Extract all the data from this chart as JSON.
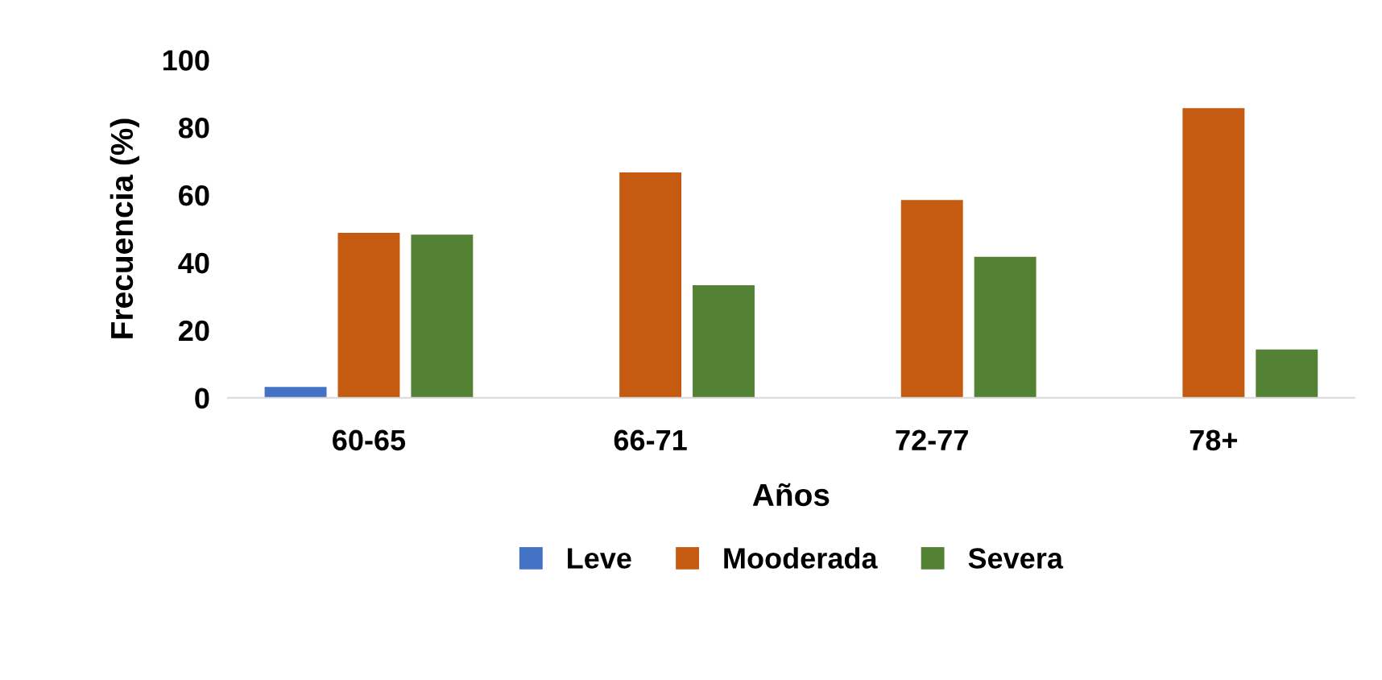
{
  "chart_data": {
    "type": "bar",
    "xlabel": "Años",
    "ylabel": "Frecuencia (%)",
    "categories": [
      "60-65",
      "66-71",
      "72-77",
      "78+"
    ],
    "series": [
      {
        "name": "Leve",
        "color": "#4472c4",
        "values": [
          3.2,
          0,
          0,
          0
        ]
      },
      {
        "name": "Mooderada",
        "color": "#c55a11",
        "values": [
          48.8,
          66.7,
          58.5,
          85.7
        ]
      },
      {
        "name": "Severa",
        "color": "#548235",
        "values": [
          48.3,
          33.3,
          41.7,
          14.3
        ]
      }
    ],
    "ylim": [
      0,
      100
    ],
    "yticks": [
      0,
      20,
      40,
      60,
      80,
      100
    ],
    "grid": false,
    "legend": "bottom"
  }
}
